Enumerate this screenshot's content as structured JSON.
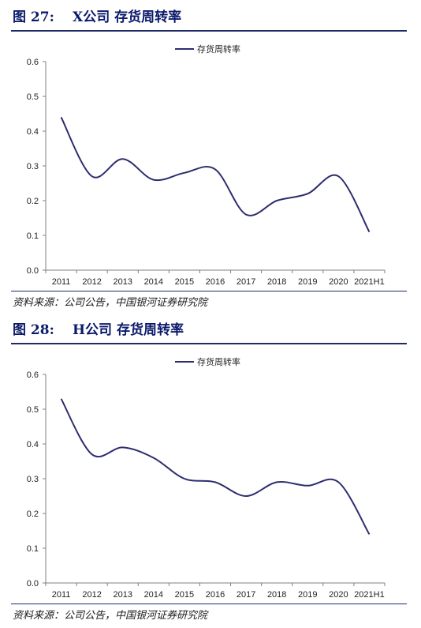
{
  "figures": [
    {
      "number": "图 27:",
      "title": "X公司 存货周转率",
      "source": "资料来源：公司公告，中国银河证券研究院"
    },
    {
      "number": "图 28:",
      "title": "H公司 存货周转率",
      "source": "资料来源：公司公告，中国银河证券研究院"
    }
  ],
  "colors": {
    "series": "#2e2d6e",
    "axis": "#7f7f7f",
    "title": "#0b1a6b"
  },
  "chart_data": [
    {
      "type": "line",
      "smooth": true,
      "categories": [
        "2011",
        "2012",
        "2013",
        "2014",
        "2015",
        "2016",
        "2017",
        "2018",
        "2019",
        "2020",
        "2021H1"
      ],
      "series": [
        {
          "name": "存货周转率",
          "values": [
            0.44,
            0.27,
            0.32,
            0.26,
            0.28,
            0.29,
            0.16,
            0.2,
            0.22,
            0.27,
            0.11
          ]
        }
      ],
      "ylim": [
        0,
        0.6
      ],
      "yticks": [
        "0.0",
        "0.1",
        "0.2",
        "0.3",
        "0.4",
        "0.5",
        "0.6"
      ],
      "legend": "top-center",
      "grid": false
    },
    {
      "type": "line",
      "smooth": true,
      "categories": [
        "2011",
        "2012",
        "2013",
        "2014",
        "2015",
        "2016",
        "2017",
        "2018",
        "2019",
        "2020",
        "2021H1"
      ],
      "series": [
        {
          "name": "存货周转率",
          "values": [
            0.53,
            0.37,
            0.39,
            0.36,
            0.3,
            0.29,
            0.25,
            0.29,
            0.28,
            0.29,
            0.14
          ]
        }
      ],
      "ylim": [
        0,
        0.6
      ],
      "yticks": [
        "0.0",
        "0.1",
        "0.2",
        "0.3",
        "0.4",
        "0.5",
        "0.6"
      ],
      "legend": "top-center",
      "grid": false
    }
  ]
}
